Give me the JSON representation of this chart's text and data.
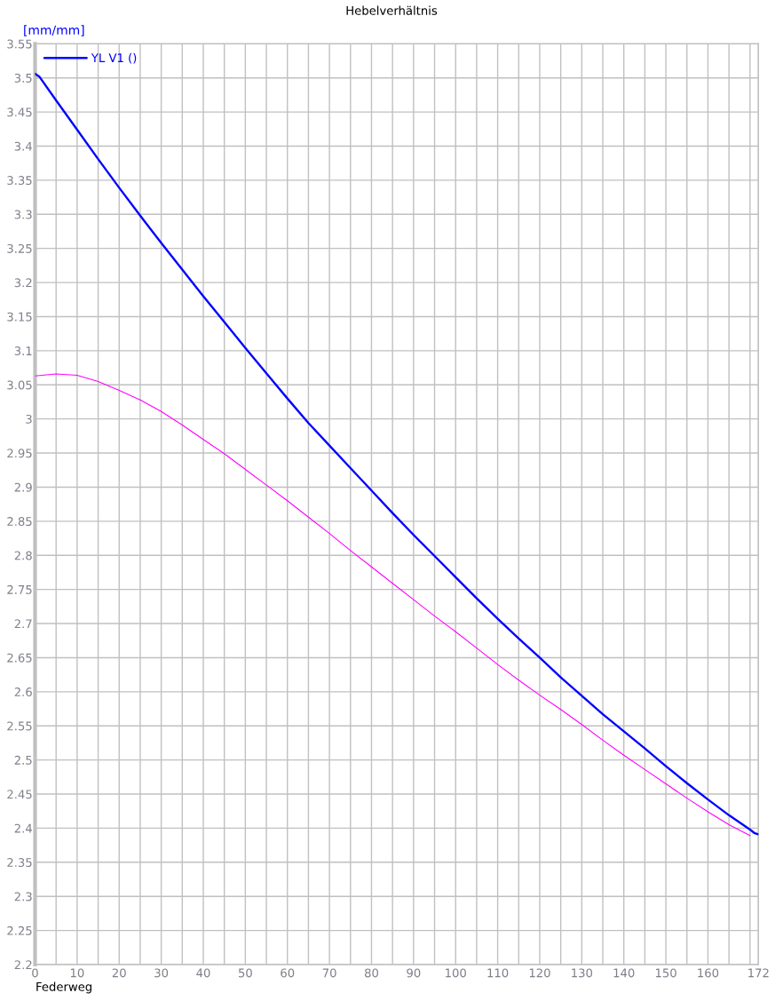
{
  "chart_data": {
    "type": "line",
    "title": "Hebelverhältnis",
    "xlabel": "Federweg",
    "ylabel": "[mm/mm]",
    "series": [
      {
        "name": "YL V1 ()",
        "color": "#0000ff",
        "x": [
          0,
          1,
          5,
          10,
          15,
          20,
          25,
          30,
          35,
          40,
          45,
          50,
          55,
          60,
          65,
          70,
          75,
          80,
          85,
          90,
          95,
          100,
          105,
          110,
          115,
          120,
          125,
          130,
          135,
          140,
          145,
          150,
          155,
          160,
          165,
          170,
          171,
          172
        ],
        "values": [
          3.506,
          3.502,
          3.467,
          3.424,
          3.381,
          3.339,
          3.298,
          3.258,
          3.219,
          3.18,
          3.142,
          3.104,
          3.067,
          3.03,
          2.994,
          2.961,
          2.928,
          2.895,
          2.862,
          2.83,
          2.799,
          2.768,
          2.737,
          2.707,
          2.678,
          2.65,
          2.621,
          2.594,
          2.567,
          2.542,
          2.517,
          2.491,
          2.466,
          2.442,
          2.419,
          2.398,
          2.393,
          2.391
        ]
      },
      {
        "color": "#ff00ff",
        "x": [
          0,
          5,
          10,
          15,
          20,
          25,
          30,
          35,
          40,
          45,
          50,
          55,
          60,
          65,
          70,
          75,
          80,
          85,
          90,
          95,
          100,
          105,
          110,
          115,
          120,
          125,
          130,
          135,
          140,
          145,
          150,
          155,
          160,
          165,
          170
        ],
        "values": [
          3.063,
          3.066,
          3.064,
          3.055,
          3.042,
          3.028,
          3.011,
          2.991,
          2.97,
          2.949,
          2.926,
          2.903,
          2.88,
          2.856,
          2.832,
          2.807,
          2.783,
          2.759,
          2.735,
          2.711,
          2.688,
          2.664,
          2.64,
          2.617,
          2.595,
          2.574,
          2.552,
          2.529,
          2.507,
          2.486,
          2.465,
          2.444,
          2.424,
          2.405,
          2.389
        ]
      }
    ],
    "xlim": [
      0,
      172
    ],
    "ylim": [
      2.2,
      3.55
    ],
    "xticks": [
      0,
      {
        "value": 5,
        "label": null
      },
      10,
      {
        "value": 15,
        "label": null
      },
      20,
      {
        "value": 25,
        "label": null
      },
      30,
      {
        "value": 35,
        "label": null
      },
      40,
      {
        "value": 45,
        "label": null
      },
      50,
      {
        "value": 55,
        "label": null
      },
      60,
      {
        "value": 65,
        "label": null
      },
      70,
      {
        "value": 75,
        "label": null
      },
      80,
      {
        "value": 85,
        "label": null
      },
      90,
      {
        "value": 95,
        "label": null
      },
      100,
      {
        "value": 105,
        "label": null
      },
      110,
      {
        "value": 115,
        "label": null
      },
      120,
      {
        "value": 125,
        "label": null
      },
      130,
      {
        "value": 135,
        "label": null
      },
      140,
      {
        "value": 145,
        "label": null
      },
      150,
      {
        "value": 155,
        "label": null
      },
      160,
      {
        "value": 165,
        "label": null
      },
      {
        "value": 170,
        "label": null
      },
      172
    ],
    "yticks": [
      2.2,
      2.25,
      2.3,
      2.35,
      2.4,
      2.45,
      2.5,
      2.55,
      2.6,
      2.65,
      2.7,
      2.75,
      2.8,
      2.85,
      2.9,
      2.95,
      3,
      3.05,
      3.1,
      3.15,
      3.2,
      3.25,
      3.3,
      3.35,
      3.4,
      3.45,
      3.5,
      3.55
    ],
    "grid": true,
    "legend": "top left"
  }
}
